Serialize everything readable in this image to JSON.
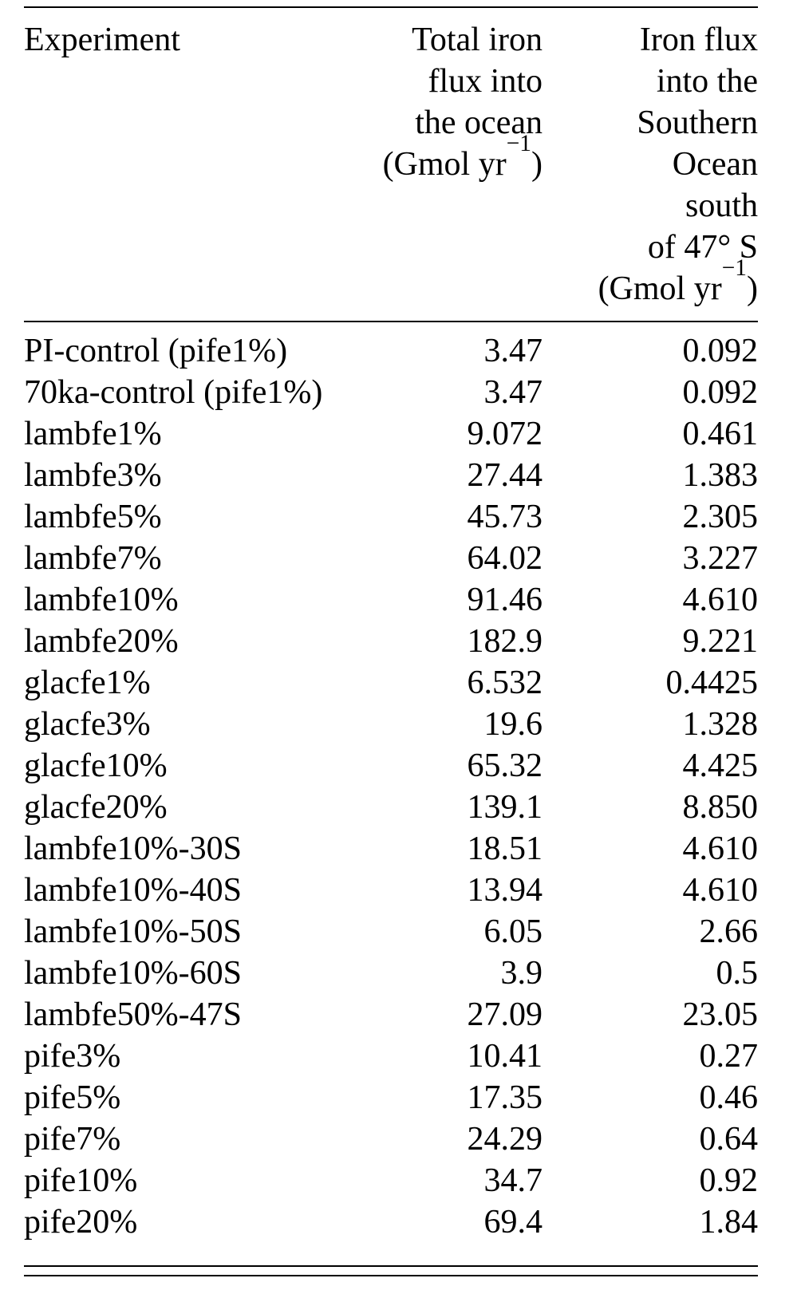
{
  "table": {
    "header": {
      "experiment": "Experiment",
      "col2_lines": [
        "Total iron",
        "flux into",
        "the ocean"
      ],
      "col2_unit": {
        "prefix": "(Gmol yr",
        "sup": "−1",
        "suffix": ")"
      },
      "col3_lines": [
        "Iron flux",
        "into the",
        "Southern",
        "Ocean",
        "south",
        "of 47° S"
      ],
      "col3_unit": {
        "prefix": "(Gmol yr",
        "sup": "−1",
        "suffix": ")"
      }
    },
    "rows": [
      {
        "experiment": "PI-control (pife1%)",
        "total_iron_flux": "3.47",
        "southern_ocean_flux": "0.092"
      },
      {
        "experiment": "70ka-control (pife1%)",
        "total_iron_flux": "3.47",
        "southern_ocean_flux": "0.092"
      },
      {
        "experiment": "lambfe1%",
        "total_iron_flux": "9.072",
        "southern_ocean_flux": "0.461"
      },
      {
        "experiment": "lambfe3%",
        "total_iron_flux": "27.44",
        "southern_ocean_flux": "1.383"
      },
      {
        "experiment": "lambfe5%",
        "total_iron_flux": "45.73",
        "southern_ocean_flux": "2.305"
      },
      {
        "experiment": "lambfe7%",
        "total_iron_flux": "64.02",
        "southern_ocean_flux": "3.227"
      },
      {
        "experiment": "lambfe10%",
        "total_iron_flux": "91.46",
        "southern_ocean_flux": "4.610"
      },
      {
        "experiment": "lambfe20%",
        "total_iron_flux": "182.9",
        "southern_ocean_flux": "9.221"
      },
      {
        "experiment": "glacfe1%",
        "total_iron_flux": "6.532",
        "southern_ocean_flux": "0.4425"
      },
      {
        "experiment": "glacfe3%",
        "total_iron_flux": "19.6",
        "southern_ocean_flux": "1.328"
      },
      {
        "experiment": "glacfe10%",
        "total_iron_flux": "65.32",
        "southern_ocean_flux": "4.425"
      },
      {
        "experiment": "glacfe20%",
        "total_iron_flux": "139.1",
        "southern_ocean_flux": "8.850"
      },
      {
        "experiment": "lambfe10%-30S",
        "total_iron_flux": "18.51",
        "southern_ocean_flux": "4.610"
      },
      {
        "experiment": "lambfe10%-40S",
        "total_iron_flux": "13.94",
        "southern_ocean_flux": "4.610"
      },
      {
        "experiment": "lambfe10%-50S",
        "total_iron_flux": "6.05",
        "southern_ocean_flux": "2.66"
      },
      {
        "experiment": "lambfe10%-60S",
        "total_iron_flux": "3.9",
        "southern_ocean_flux": "0.5"
      },
      {
        "experiment": "lambfe50%-47S",
        "total_iron_flux": "27.09",
        "southern_ocean_flux": "23.05"
      },
      {
        "experiment": "pife3%",
        "total_iron_flux": "10.41",
        "southern_ocean_flux": "0.27"
      },
      {
        "experiment": "pife5%",
        "total_iron_flux": "17.35",
        "southern_ocean_flux": "0.46"
      },
      {
        "experiment": "pife7%",
        "total_iron_flux": "24.29",
        "southern_ocean_flux": "0.64"
      },
      {
        "experiment": "pife10%",
        "total_iron_flux": "34.7",
        "southern_ocean_flux": "0.92"
      },
      {
        "experiment": "pife20%",
        "total_iron_flux": "69.4",
        "southern_ocean_flux": "1.84"
      }
    ]
  }
}
